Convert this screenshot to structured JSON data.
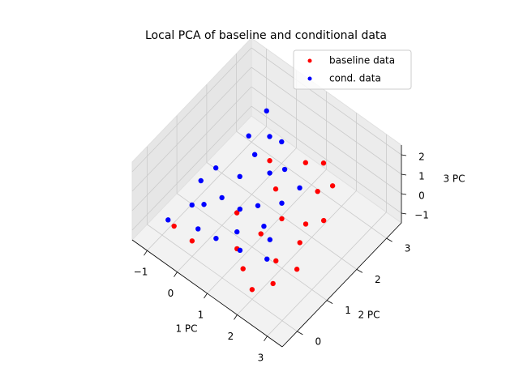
{
  "chart_data": {
    "type": "scatter3d",
    "title": "Local PCA of baseline and conditional data",
    "x_label": "1 PC",
    "y_label": "2 PC",
    "z_label": "3 PC",
    "xlim": [
      -1.5,
      3.5
    ],
    "ylim": [
      -0.5,
      3.5
    ],
    "zlim": [
      -1.5,
      2.5
    ],
    "xticks": [
      {
        "value": -1,
        "label": "−1"
      },
      0,
      1,
      2,
      3
    ],
    "yticks": [
      0,
      1,
      2,
      3
    ],
    "zticks": [
      {
        "value": -1,
        "label": "−1"
      },
      0,
      1,
      2
    ],
    "grid": true,
    "legend": "upper right",
    "series": [
      {
        "name": "baseline data",
        "color": "#ff0000",
        "x": [
          1.5,
          2.0,
          2.3,
          2.0,
          1.5,
          2.0,
          1.8,
          1.2,
          2.5,
          1.0,
          0.0,
          -0.6,
          0.5,
          1.0,
          2.2,
          1.6,
          0.6,
          2.4,
          1.3,
          2.1
        ],
        "y": [
          0.2,
          0.0,
          0.4,
          0.8,
          1.5,
          1.8,
          2.4,
          2.6,
          1.0,
          0.5,
          0.0,
          0.0,
          1.0,
          1.8,
          1.4,
          2.8,
          2.0,
          2.0,
          1.0,
          2.6
        ],
        "z": [
          -0.8,
          -1.0,
          -1.0,
          -0.8,
          -0.3,
          -0.5,
          0.0,
          0.5,
          -1.0,
          -0.8,
          -0.7,
          -0.6,
          -0.3,
          0.2,
          -0.6,
          0.6,
          0.9,
          -0.2,
          -0.5,
          0.3
        ]
      },
      {
        "name": "cond. data",
        "color": "#0000ff",
        "x": [
          -0.8,
          0.0,
          1.9,
          -0.4,
          0.5,
          0.6,
          0.3,
          -0.2,
          1.0,
          1.2,
          0.0,
          -0.5,
          0.8,
          0.2,
          1.4,
          0.9,
          -0.1,
          0.4,
          1.5,
          1.7,
          0.1,
          -0.6,
          0.7,
          1.1,
          1.6
        ],
        "y": [
          0.0,
          2.5,
          0.6,
          1.2,
          0.3,
          1.0,
          1.8,
          0.6,
          1.2,
          0.4,
          0.2,
          0.5,
          1.8,
          1.4,
          1.0,
          0.6,
          2.0,
          2.2,
          1.5,
          0.9,
          0.9,
          0.9,
          2.3,
          2.0,
          2.0
        ],
        "z": [
          -0.5,
          2.0,
          -0.5,
          0.7,
          -0.5,
          0.0,
          1.2,
          0.0,
          0.3,
          -0.5,
          -0.4,
          -0.2,
          0.8,
          0.6,
          0.0,
          -0.2,
          1.4,
          1.6,
          0.5,
          -0.2,
          0.2,
          0.3,
          1.5,
          1.0,
          0.6
        ]
      }
    ]
  }
}
